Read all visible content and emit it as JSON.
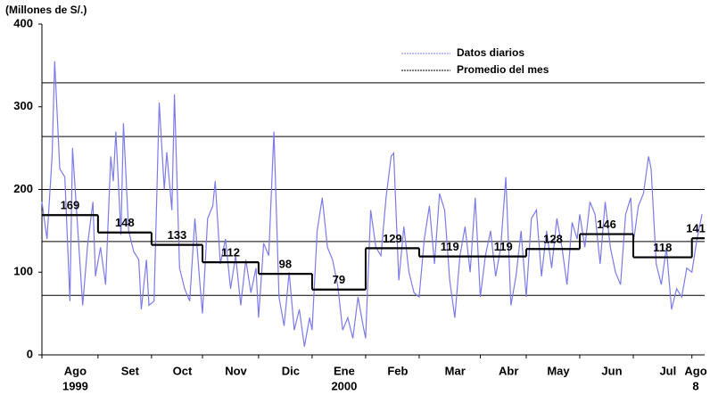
{
  "chart_data": {
    "type": "line",
    "ylabel": "(Millones de S/.)",
    "ylim": [
      0,
      400
    ],
    "yticks": [
      0,
      100,
      200,
      300,
      400
    ],
    "xlim": [
      0,
      260
    ],
    "hlines": [
      329,
      264,
      200,
      137,
      72
    ],
    "legend": "top-right",
    "categories": [
      "Ago",
      "Set",
      "Oct",
      "Nov",
      "Dic",
      "Ene",
      "Feb",
      "Mar",
      "Abr",
      "May",
      "Jun",
      "Jul",
      "Ago"
    ],
    "sublabels": [
      "1999",
      null,
      null,
      null,
      null,
      "2000",
      null,
      null,
      null,
      null,
      null,
      null,
      "8"
    ],
    "series": [
      {
        "name": "Datos diarios",
        "color": "#7b7bea",
        "x": [
          0,
          2,
          4,
          5,
          7,
          9,
          11,
          12,
          14,
          16,
          18,
          20,
          21,
          23,
          25,
          27,
          28,
          29,
          31,
          32,
          34,
          36,
          38,
          39,
          41,
          42,
          44,
          46,
          48,
          49,
          51,
          52,
          54,
          56,
          58,
          60,
          62,
          63,
          65,
          67,
          68,
          70,
          72,
          74,
          76,
          78,
          80,
          82,
          84,
          85,
          87,
          89,
          91,
          93,
          95,
          97,
          99,
          101,
          103,
          105,
          106,
          108,
          110,
          112,
          114,
          116,
          118,
          120,
          122,
          124,
          126,
          127,
          129,
          131,
          133,
          135,
          137,
          138,
          140,
          142,
          144,
          146,
          148,
          150,
          152,
          154,
          156,
          158,
          160,
          162,
          164,
          166,
          168,
          170,
          172,
          174,
          176,
          178,
          180,
          182,
          184,
          186,
          188,
          190,
          192,
          194,
          196,
          198,
          200,
          202,
          204,
          206,
          208,
          210,
          211,
          213,
          215,
          217,
          219,
          221,
          223,
          225,
          227,
          229,
          231,
          232,
          234,
          236,
          238,
          239,
          241,
          243,
          245,
          247,
          249,
          251,
          253,
          255,
          257,
          259
        ],
        "values": [
          185,
          140,
          240,
          355,
          225,
          215,
          65,
          250,
          155,
          60,
          135,
          185,
          95,
          130,
          85,
          240,
          210,
          270,
          145,
          280,
          150,
          125,
          115,
          55,
          115,
          60,
          65,
          305,
          200,
          245,
          175,
          315,
          105,
          80,
          65,
          165,
          85,
          50,
          165,
          180,
          210,
          110,
          140,
          80,
          120,
          60,
          115,
          75,
          105,
          45,
          135,
          120,
          270,
          70,
          35,
          100,
          30,
          55,
          10,
          45,
          30,
          150,
          190,
          130,
          115,
          85,
          30,
          45,
          20,
          70,
          35,
          20,
          175,
          130,
          120,
          190,
          240,
          244,
          90,
          155,
          100,
          75,
          70,
          140,
          180,
          110,
          195,
          175,
          90,
          45,
          120,
          155,
          100,
          190,
          70,
          120,
          150,
          95,
          130,
          215,
          60,
          95,
          150,
          70,
          165,
          175,
          95,
          150,
          105,
          165,
          130,
          85,
          160,
          140,
          170,
          130,
          185,
          170,
          110,
          185,
          130,
          100,
          85,
          170,
          190,
          135,
          180,
          195,
          240,
          225,
          110,
          85,
          130,
          55,
          80,
          70,
          105,
          100,
          140,
          170
        ]
      },
      {
        "name": "Promedio del mes",
        "color": "#000000",
        "bounds": [
          0,
          22,
          43,
          63,
          85,
          106,
          127,
          148,
          172,
          190,
          211,
          232,
          255,
          260
        ],
        "values": [
          169,
          148,
          133,
          112,
          98,
          79,
          129,
          119,
          119,
          128,
          146,
          118,
          141
        ]
      }
    ]
  }
}
